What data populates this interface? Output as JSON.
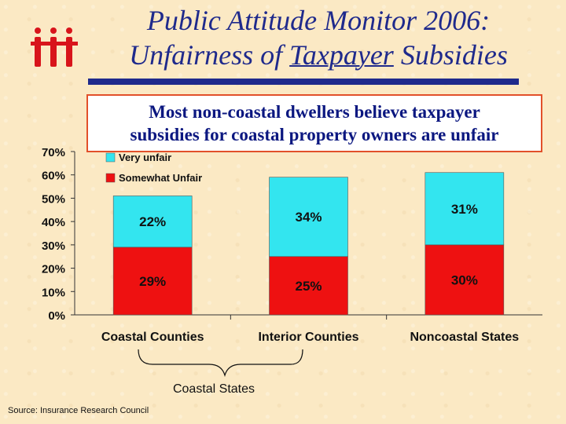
{
  "header": {
    "title_line1": "Public Attitude Monitor 2006:",
    "title_line2_pre": "Unfairness of ",
    "title_line2_underlined": "Taxpayer",
    "title_line2_post": " Subsidies"
  },
  "callout": {
    "line1": "Most non-coastal dwellers believe taxpayer",
    "line2": "subsidies for coastal property owners are unfair"
  },
  "brace_label": "Coastal States",
  "source": "Source:  Insurance Research Council",
  "colors": {
    "very_unfair": "#33e5ef",
    "somewhat_unfair": "#ee1111",
    "title": "#1f2a8c",
    "callout_border": "#e2502a"
  },
  "chart_data": {
    "type": "bar",
    "stacked": true,
    "categories": [
      "Coastal Counties",
      "Interior Counties",
      "Noncoastal States"
    ],
    "series": [
      {
        "name": "Somewhat Unfair",
        "values": [
          29,
          25,
          30
        ],
        "labels": [
          "29%",
          "25%",
          "30%"
        ],
        "color": "#ee1111"
      },
      {
        "name": "Very unfair",
        "values": [
          22,
          34,
          31
        ],
        "labels": [
          "22%",
          "34%",
          "31%"
        ],
        "color": "#33e5ef"
      }
    ],
    "ylim": [
      0,
      70
    ],
    "yticks": [
      0,
      10,
      20,
      30,
      40,
      50,
      60,
      70
    ],
    "ytick_labels": [
      "0%",
      "10%",
      "20%",
      "30%",
      "40%",
      "50%",
      "60%",
      "70%"
    ],
    "legend": {
      "placement": "top-left",
      "entries": [
        "Very unfair",
        "Somewhat Unfair"
      ]
    },
    "grid": false
  }
}
